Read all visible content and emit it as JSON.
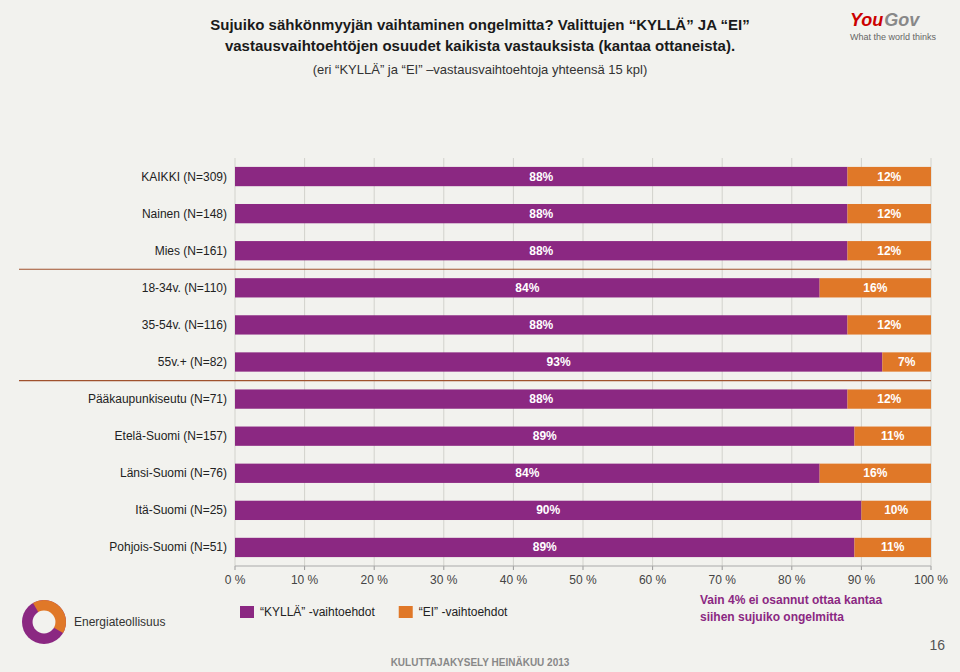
{
  "chart_data": {
    "type": "bar",
    "orientation": "horizontal",
    "stacked": true,
    "title": "Sujuiko sähkönmyyjän vaihtaminen ongelmitta? Valittujen “KYLLÄ” JA “EI”\nvastausvaihtoehtöjen  osuudet kaikista vastauksista (kantaa ottaneista).",
    "subtitle": "(eri “KYLLÄ” ja “EI” –vastausvaihtoehtoja yhteensä 15 kpl)",
    "categories": [
      "KAIKKI (N=309)",
      "Nainen (N=148)",
      "Mies (N=161)",
      "18-34v. (N=110)",
      "35-54v. (N=116)",
      "55v.+ (N=82)",
      "Pääkaupunkiseutu (N=71)",
      "Etelä-Suomi (N=157)",
      "Länsi-Suomi (N=76)",
      "Itä-Suomi (N=25)",
      "Pohjois-Suomi (N=51)"
    ],
    "series": [
      {
        "name": "“KYLLÄ” -vaihtoehdot",
        "color": "#8B2882",
        "values": [
          88,
          88,
          88,
          84,
          88,
          93,
          88,
          89,
          84,
          90,
          89
        ],
        "value_labels": [
          "88%",
          "88%",
          "88%",
          "84%",
          "88%",
          "93%",
          "88%",
          "89%",
          "84%",
          "90%",
          "89%"
        ]
      },
      {
        "name": "“EI” -vaihtoehdot",
        "color": "#E07828",
        "values": [
          12,
          12,
          12,
          16,
          12,
          7,
          12,
          11,
          16,
          10,
          11
        ],
        "value_labels": [
          "12%",
          "12%",
          "12%",
          "16%",
          "12%",
          "7%",
          "12%",
          "11%",
          "16%",
          "10%",
          "11%"
        ]
      }
    ],
    "xlim": [
      0,
      100
    ],
    "xticks": [
      {
        "value": 0,
        "label": "0 %"
      },
      {
        "value": 10,
        "label": "10 %"
      },
      {
        "value": 20,
        "label": "20 %"
      },
      {
        "value": 30,
        "label": "30 %"
      },
      {
        "value": 40,
        "label": "40 %"
      },
      {
        "value": 50,
        "label": "50 %"
      },
      {
        "value": 60,
        "label": "60 %"
      },
      {
        "value": 70,
        "label": "70 %"
      },
      {
        "value": 80,
        "label": "80 %"
      },
      {
        "value": 90,
        "label": "90 %"
      },
      {
        "value": 100,
        "label": "100 %"
      }
    ],
    "grid": true,
    "legend": "lower left",
    "data_labels": true,
    "annotations": [
      "You",
      "Gov",
      "What the world thinks",
      "Energiateollisuus",
      "Vain 4% ei osannut ottaa kantaa\nsiihen sujuiko ongelmitta",
      "16",
      "KULUTTAJAKYSELY HEINÄKUU 2013"
    ]
  }
}
